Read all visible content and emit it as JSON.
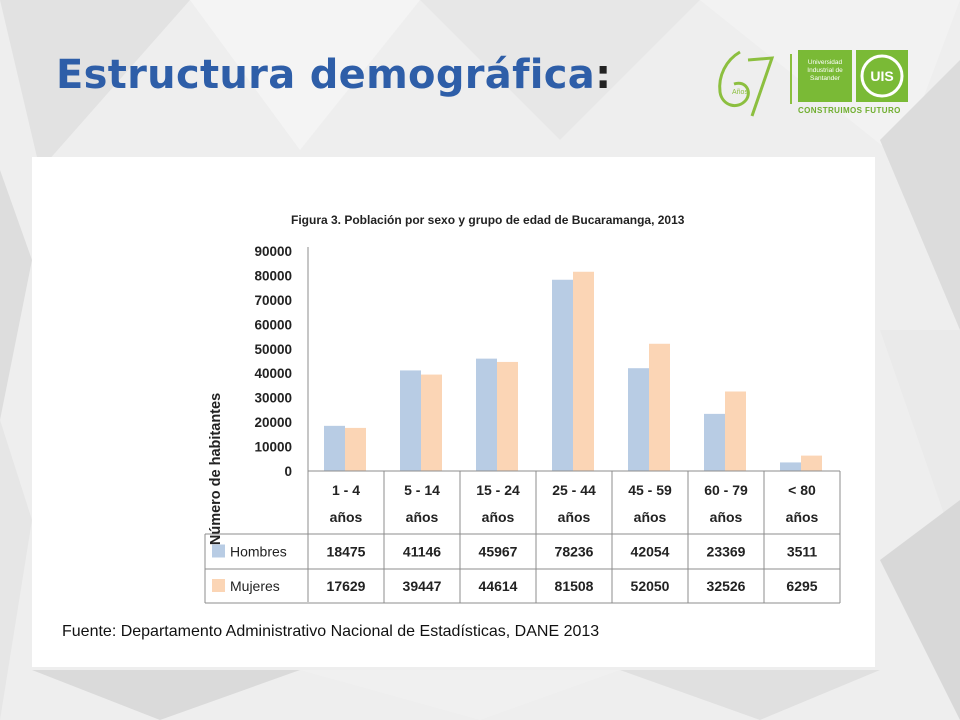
{
  "slide": {
    "title": "Estructura demográfica",
    "colon": ":"
  },
  "logos": {
    "anniversary_number": "67",
    "anniversary_word": "Años",
    "university_line1": "Universidad",
    "university_line2": "Industrial de",
    "university_line3": "Santander",
    "tagline": "CONSTRUIMOS FUTURO",
    "seal_text": "UIS",
    "brand_color": "#7aba36"
  },
  "source_text": "Fuente: Departamento Administrativo Nacional de Estadísticas, DANE 2013",
  "chart_data": {
    "type": "bar",
    "title": "Figura 3. Población por sexo y grupo de edad de Bucaramanga, 2013",
    "ylabel": "Número de habitantes",
    "xlabel": "",
    "ylim": [
      0,
      90000
    ],
    "yticks": [
      0,
      10000,
      20000,
      30000,
      40000,
      50000,
      60000,
      70000,
      80000,
      90000
    ],
    "ytick_labels": [
      "0",
      "10000",
      "20000",
      "30000",
      "40000",
      "50000",
      "60000",
      "70000",
      "80000",
      "90000"
    ],
    "grid": false,
    "legend": "data-table-left",
    "categories": [
      [
        "1 - 4",
        "años"
      ],
      [
        "5 - 14",
        "años"
      ],
      [
        "15 - 24",
        "años"
      ],
      [
        "25 - 44",
        "años"
      ],
      [
        "45 - 59",
        "años"
      ],
      [
        "60 - 79",
        "años"
      ],
      [
        "< 80",
        "años"
      ]
    ],
    "series": [
      {
        "name": "Hombres",
        "color": "#b8cce4",
        "values": [
          18475,
          41146,
          45967,
          78236,
          42054,
          23369,
          3511
        ]
      },
      {
        "name": "Mujeres",
        "color": "#fbd5b5",
        "values": [
          17629,
          39447,
          44614,
          81508,
          52050,
          32526,
          6295
        ]
      }
    ]
  }
}
